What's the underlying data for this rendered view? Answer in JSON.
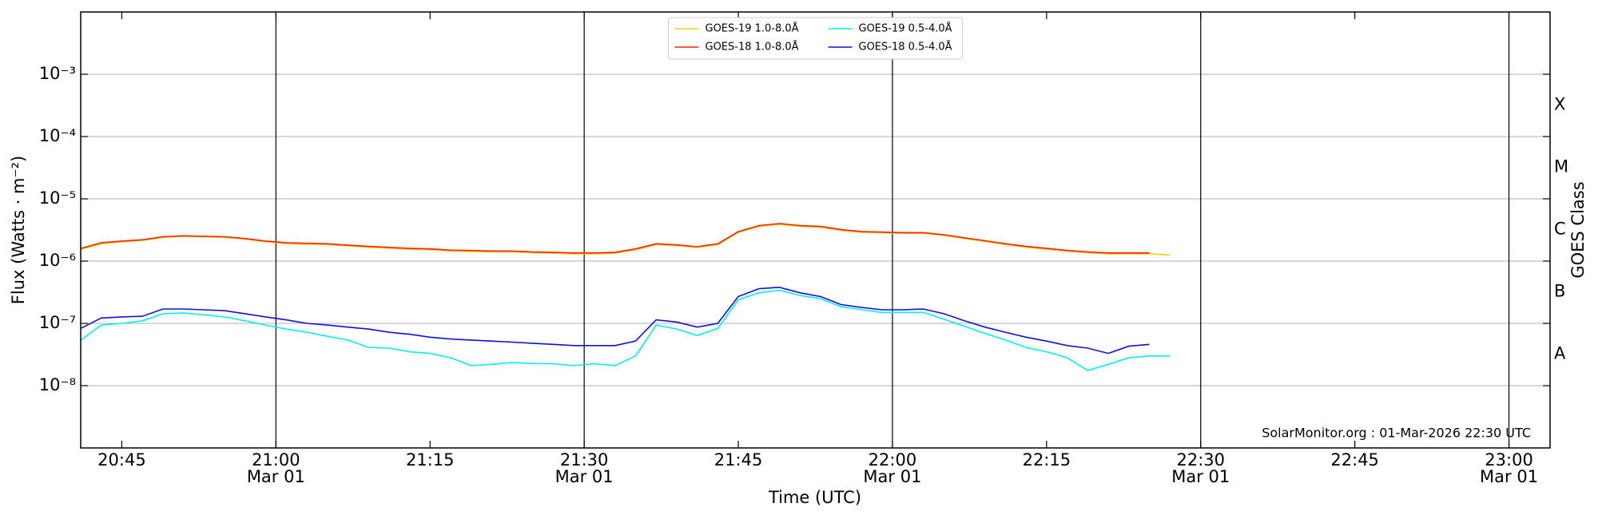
{
  "chart_data": {
    "type": "line",
    "xlabel": "Time (UTC)",
    "ylabel": "Flux (Watts · m⁻²)",
    "y2label": "GOES Class",
    "annotation": "SolarMonitor.org : 01-Mar-2026 22:30 UTC",
    "yscale": "log",
    "grid": true,
    "legend": "upper center",
    "xlim": [
      "20:41",
      "23:04"
    ],
    "xticks": [
      {
        "value": "20:45",
        "label": [
          "20:45"
        ]
      },
      {
        "value": "21:00",
        "label": [
          "21:00",
          "Mar 01"
        ]
      },
      {
        "value": "21:15",
        "label": [
          "21:15"
        ]
      },
      {
        "value": "21:30",
        "label": [
          "21:30",
          "Mar 01"
        ]
      },
      {
        "value": "21:45",
        "label": [
          "21:45"
        ]
      },
      {
        "value": "22:00",
        "label": [
          "22:00",
          "Mar 01"
        ]
      },
      {
        "value": "22:15",
        "label": [
          "22:15"
        ]
      },
      {
        "value": "22:30",
        "label": [
          "22:30",
          "Mar 01"
        ]
      },
      {
        "value": "22:45",
        "label": [
          "22:45"
        ]
      },
      {
        "value": "23:00",
        "label": [
          "23:00",
          "Mar 01"
        ]
      }
    ],
    "ylim": [
      1e-09,
      0.01
    ],
    "yticks": [
      {
        "value": 1e-08,
        "label": "10⁻⁸"
      },
      {
        "value": 1e-07,
        "label": "10⁻⁷"
      },
      {
        "value": 1e-06,
        "label": "10⁻⁶"
      },
      {
        "value": 1e-05,
        "label": "10⁻⁵"
      },
      {
        "value": 0.0001,
        "label": "10⁻⁴"
      },
      {
        "value": 0.001,
        "label": "10⁻³"
      }
    ],
    "y2ticks": [
      {
        "value": 3.2e-08,
        "label": "A"
      },
      {
        "value": 3.2e-07,
        "label": "B"
      },
      {
        "value": 3.2e-06,
        "label": "C"
      },
      {
        "value": 3.2e-05,
        "label": "M"
      },
      {
        "value": 0.00032,
        "label": "X"
      }
    ],
    "x": [
      "20:41",
      "20:43",
      "20:45",
      "20:47",
      "20:49",
      "20:51",
      "20:53",
      "20:55",
      "20:57",
      "20:59",
      "21:01",
      "21:03",
      "21:05",
      "21:07",
      "21:09",
      "21:11",
      "21:13",
      "21:15",
      "21:17",
      "21:19",
      "21:21",
      "21:23",
      "21:25",
      "21:27",
      "21:29",
      "21:31",
      "21:33",
      "21:35",
      "21:37",
      "21:39",
      "21:41",
      "21:43",
      "21:45",
      "21:47",
      "21:49",
      "21:51",
      "21:53",
      "21:55",
      "21:57",
      "21:59",
      "22:01",
      "22:03",
      "22:05",
      "22:07",
      "22:09",
      "22:11",
      "22:13",
      "22:15",
      "22:17",
      "22:19",
      "22:21",
      "22:23",
      "22:25",
      "22:27"
    ],
    "series": [
      {
        "name": "GOES-19 1.0-8.0Å",
        "color": "#ffd000",
        "values": [
          1.55e-06,
          1.9e-06,
          2.05e-06,
          2.15e-06,
          2.4e-06,
          2.5e-06,
          2.45e-06,
          2.4e-06,
          2.25e-06,
          2.05e-06,
          1.9e-06,
          1.87e-06,
          1.84e-06,
          1.75e-06,
          1.67e-06,
          1.61e-06,
          1.55e-06,
          1.52e-06,
          1.46e-06,
          1.43e-06,
          1.41e-06,
          1.41e-06,
          1.36e-06,
          1.34e-06,
          1.31e-06,
          1.31e-06,
          1.34e-06,
          1.52e-06,
          1.84e-06,
          1.77e-06,
          1.65e-06,
          1.84e-06,
          2.9e-06,
          3.6e-06,
          3.9e-06,
          3.6e-06,
          3.5e-06,
          3.1e-06,
          2.9e-06,
          2.85e-06,
          2.8e-06,
          2.8e-06,
          2.57e-06,
          2.3e-06,
          2.06e-06,
          1.84e-06,
          1.67e-06,
          1.55e-06,
          1.44e-06,
          1.36e-06,
          1.31e-06,
          1.31e-06,
          1.31e-06,
          1.25e-06
        ]
      },
      {
        "name": "GOES-18 1.0-8.0Å",
        "color": "#ff2000",
        "values": [
          1.6e-06,
          1.97e-06,
          2.1e-06,
          2.2e-06,
          2.46e-06,
          2.55e-06,
          2.5e-06,
          2.46e-06,
          2.3e-06,
          2.1e-06,
          1.97e-06,
          1.93e-06,
          1.9e-06,
          1.8e-06,
          1.72e-06,
          1.66e-06,
          1.6e-06,
          1.57e-06,
          1.5e-06,
          1.48e-06,
          1.45e-06,
          1.45e-06,
          1.4e-06,
          1.38e-06,
          1.35e-06,
          1.35e-06,
          1.38e-06,
          1.57e-06,
          1.9e-06,
          1.82e-06,
          1.7e-06,
          1.9e-06,
          2.97e-06,
          3.72e-06,
          4e-06,
          3.72e-06,
          3.6e-06,
          3.2e-06,
          2.97e-06,
          2.92e-06,
          2.86e-06,
          2.86e-06,
          2.65e-06,
          2.37e-06,
          2.12e-06,
          1.9e-06,
          1.72e-06,
          1.6e-06,
          1.48e-06,
          1.4e-06,
          1.35e-06,
          1.35e-06,
          1.35e-06,
          null
        ]
      },
      {
        "name": "GOES-19 0.5-4.0Å",
        "color": "#00f0f0",
        "values": [
          5.4e-08,
          9.4e-08,
          1e-07,
          1.1e-07,
          1.43e-07,
          1.47e-07,
          1.37e-07,
          1.27e-07,
          1.1e-07,
          9.4e-08,
          8.1e-08,
          7.2e-08,
          6.2e-08,
          5.4e-08,
          4.1e-08,
          4e-08,
          3.5e-08,
          3.3e-08,
          2.8e-08,
          2.1e-08,
          2.2e-08,
          2.35e-08,
          2.25e-08,
          2.25e-08,
          2.1e-08,
          2.25e-08,
          2.1e-08,
          3e-08,
          9.4e-08,
          8.1e-08,
          6.4e-08,
          8.3e-08,
          2.4e-07,
          3.1e-07,
          3.4e-07,
          2.8e-07,
          2.5e-07,
          1.85e-07,
          1.65e-07,
          1.5e-07,
          1.5e-07,
          1.5e-07,
          1.17e-07,
          9e-08,
          6.9e-08,
          5.4e-08,
          4.1e-08,
          3.5e-08,
          2.8e-08,
          1.75e-08,
          2.2e-08,
          2.8e-08,
          3e-08,
          3e-08
        ]
      },
      {
        "name": "GOES-18 0.5-4.0Å",
        "color": "#1010e0",
        "values": [
          8.3e-08,
          1.22e-07,
          1.27e-07,
          1.3e-07,
          1.7e-07,
          1.7e-07,
          1.65e-07,
          1.6e-07,
          1.43e-07,
          1.27e-07,
          1.14e-07,
          1e-07,
          9.4e-08,
          8.7e-08,
          8.1e-08,
          7.2e-08,
          6.7e-08,
          6e-08,
          5.6e-08,
          5.4e-08,
          5.2e-08,
          5e-08,
          4.8e-08,
          4.6e-08,
          4.4e-08,
          4.4e-08,
          4.4e-08,
          5.2e-08,
          1.14e-07,
          1.05e-07,
          8.7e-08,
          1e-07,
          2.7e-07,
          3.6e-07,
          3.8e-07,
          3.1e-07,
          2.7e-07,
          2e-07,
          1.8e-07,
          1.65e-07,
          1.65e-07,
          1.7e-07,
          1.43e-07,
          1.1e-07,
          8.7e-08,
          7.2e-08,
          6e-08,
          5.2e-08,
          4.4e-08,
          4e-08,
          3.3e-08,
          4.3e-08,
          4.6e-08,
          null
        ]
      }
    ]
  }
}
